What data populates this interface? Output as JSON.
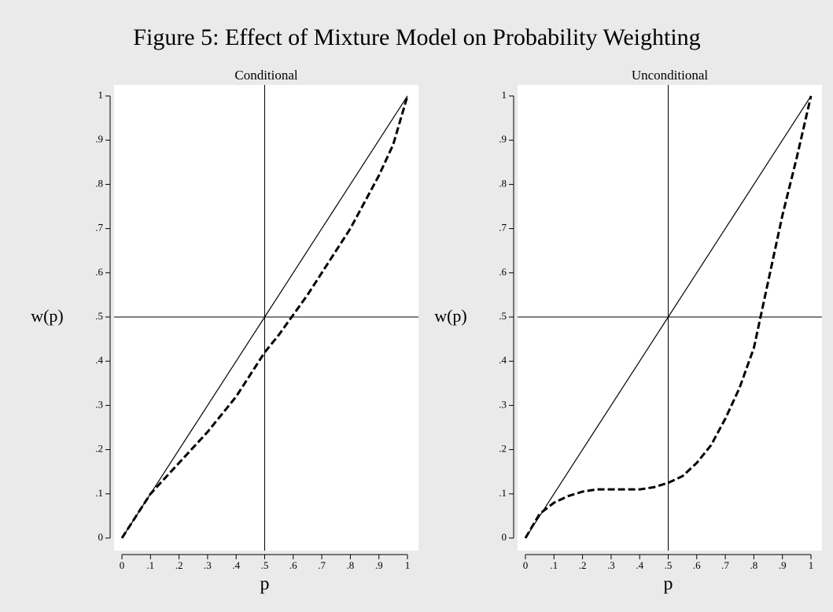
{
  "title": "Figure 5: Effect of Mixture Model on Probability Weighting",
  "chart_data": [
    {
      "type": "line",
      "title": "Conditional",
      "x_label": "p",
      "y_label": "w(p)",
      "x": [
        0,
        0.05,
        0.1,
        0.15,
        0.2,
        0.25,
        0.3,
        0.35,
        0.4,
        0.45,
        0.5,
        0.55,
        0.6,
        0.65,
        0.7,
        0.75,
        0.8,
        0.85,
        0.9,
        0.95,
        1
      ],
      "series": [
        {
          "color": "#000000",
          "dashed": false,
          "values": [
            0,
            0.05,
            0.1,
            0.15,
            0.2,
            0.25,
            0.3,
            0.35,
            0.4,
            0.45,
            0.5,
            0.55,
            0.6,
            0.65,
            0.7,
            0.75,
            0.8,
            0.85,
            0.9,
            0.95,
            1
          ]
        },
        {
          "color": "#000000",
          "dashed": true,
          "values": [
            0,
            0.05,
            0.1,
            0.135,
            0.17,
            0.205,
            0.24,
            0.28,
            0.32,
            0.37,
            0.42,
            0.46,
            0.505,
            0.55,
            0.6,
            0.65,
            0.7,
            0.76,
            0.82,
            0.89,
            1
          ]
        }
      ],
      "xlim": [
        0,
        1
      ],
      "ylim": [
        0,
        1
      ],
      "xticks": [
        0,
        {
          "value": 0.1,
          "label": ".1"
        },
        {
          "value": 0.2,
          "label": ".2"
        },
        {
          "value": 0.3,
          "label": ".3"
        },
        {
          "value": 0.4,
          "label": ".4"
        },
        {
          "value": 0.5,
          "label": ".5"
        },
        {
          "value": 0.6,
          "label": ".6"
        },
        {
          "value": 0.7,
          "label": ".7"
        },
        {
          "value": 0.8,
          "label": ".8"
        },
        {
          "value": 0.9,
          "label": ".9"
        },
        1
      ],
      "yticks": [
        0,
        {
          "value": 0.1,
          "label": ".1"
        },
        {
          "value": 0.2,
          "label": ".2"
        },
        {
          "value": 0.3,
          "label": ".3"
        },
        {
          "value": 0.4,
          "label": ".4"
        },
        {
          "value": 0.5,
          "label": ".5"
        },
        {
          "value": 0.6,
          "label": ".6"
        },
        {
          "value": 0.7,
          "label": ".7"
        },
        {
          "value": 0.8,
          "label": ".8"
        },
        {
          "value": 0.9,
          "label": ".9"
        },
        1
      ],
      "xline": 0.5,
      "yline": 0.5
    },
    {
      "type": "line",
      "title": "Unconditional",
      "x_label": "p",
      "y_label": "w(p)",
      "x": [
        0,
        0.05,
        0.1,
        0.15,
        0.2,
        0.25,
        0.3,
        0.35,
        0.4,
        0.45,
        0.5,
        0.55,
        0.6,
        0.65,
        0.7,
        0.75,
        0.8,
        0.85,
        0.9,
        0.95,
        1
      ],
      "series": [
        {
          "color": "#000000",
          "dashed": false,
          "values": [
            0,
            0.05,
            0.1,
            0.15,
            0.2,
            0.25,
            0.3,
            0.35,
            0.4,
            0.45,
            0.5,
            0.55,
            0.6,
            0.65,
            0.7,
            0.75,
            0.8,
            0.85,
            0.9,
            0.95,
            1
          ]
        },
        {
          "color": "#000000",
          "dashed": true,
          "values": [
            0,
            0.055,
            0.08,
            0.095,
            0.105,
            0.11,
            0.11,
            0.11,
            0.11,
            0.115,
            0.125,
            0.14,
            0.17,
            0.21,
            0.27,
            0.34,
            0.43,
            0.58,
            0.73,
            0.86,
            1
          ]
        }
      ],
      "xlim": [
        0,
        1
      ],
      "ylim": [
        0,
        1
      ],
      "xticks": [
        0,
        {
          "value": 0.1,
          "label": ".1"
        },
        {
          "value": 0.2,
          "label": ".2"
        },
        {
          "value": 0.3,
          "label": ".3"
        },
        {
          "value": 0.4,
          "label": ".4"
        },
        {
          "value": 0.5,
          "label": ".5"
        },
        {
          "value": 0.6,
          "label": ".6"
        },
        {
          "value": 0.7,
          "label": ".7"
        },
        {
          "value": 0.8,
          "label": ".8"
        },
        {
          "value": 0.9,
          "label": ".9"
        },
        1
      ],
      "yticks": [
        0,
        {
          "value": 0.1,
          "label": ".1"
        },
        {
          "value": 0.2,
          "label": ".2"
        },
        {
          "value": 0.3,
          "label": ".3"
        },
        {
          "value": 0.4,
          "label": ".4"
        },
        {
          "value": 0.5,
          "label": ".5"
        },
        {
          "value": 0.6,
          "label": ".6"
        },
        {
          "value": 0.7,
          "label": ".7"
        },
        {
          "value": 0.8,
          "label": ".8"
        },
        {
          "value": 0.9,
          "label": ".9"
        },
        1
      ],
      "xline": 0.5,
      "yline": 0.5
    }
  ]
}
